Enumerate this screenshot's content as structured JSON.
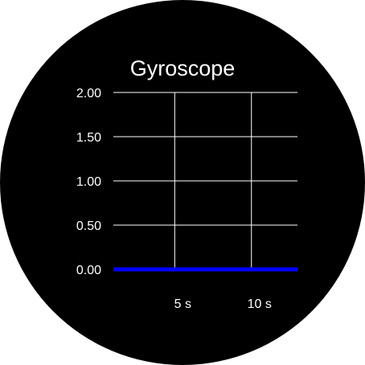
{
  "screen": {
    "title": "Gyroscope"
  },
  "chart_data": {
    "type": "line",
    "title": "Gyroscope",
    "xlabel": "",
    "ylabel": "",
    "ylim": [
      0,
      2
    ],
    "xlim": [
      0,
      12
    ],
    "y_ticks": [
      "0.00",
      "0.50",
      "1.00",
      "1.50",
      "2.00"
    ],
    "y_tick_values": [
      0,
      0.5,
      1,
      1.5,
      2
    ],
    "x_ticks": [
      "5 s",
      "10 s"
    ],
    "x_tick_values": [
      4,
      9
    ],
    "grid": true,
    "series": [
      {
        "color": "#0000ff",
        "x": [
          0,
          12
        ],
        "y": [
          0,
          0
        ]
      }
    ],
    "colors": {
      "background": "#000000",
      "grid": "#ffffff",
      "text": "#ffffff"
    }
  }
}
